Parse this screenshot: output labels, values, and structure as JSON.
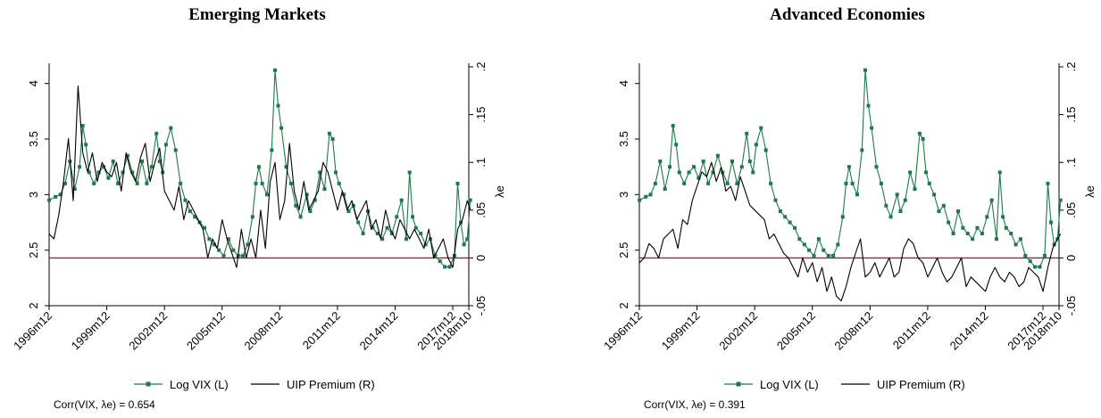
{
  "colors": {
    "vix": "#1e7a4e",
    "uip": "#000000",
    "zero_line": "#b0143c",
    "axis": "#000000"
  },
  "legend": {
    "vix_label": "Log VIX (L)",
    "uip_label": "UIP Premium (R)"
  },
  "chart_data": [
    {
      "type": "line",
      "title": "Emerging Markets",
      "xlabel": "",
      "ylabel_left": "",
      "ylabel_right": "λe",
      "x_tick_labels": [
        "1996m12",
        "1999m12",
        "2002m12",
        "2005m12",
        "2008m12",
        "2011m12",
        "2014m12",
        "2017m12",
        "2018m10"
      ],
      "y_left_ticks": [
        "2",
        "2.5",
        "3",
        "3.5",
        "4"
      ],
      "y_right_ticks": [
        "-.05",
        "0",
        ".05",
        ".1",
        ".15",
        ".2"
      ],
      "ylim_left": [
        2,
        4.15
      ],
      "ylim_right": [
        -0.05,
        0.2
      ],
      "reference_line_right": 0,
      "grid": false,
      "correlation_note": "Corr(VIX, λe) = 0.654",
      "series": [
        {
          "name": "Log VIX (L)",
          "axis": "left",
          "marker": "square",
          "x": [
            1996.92,
            1997.25,
            1997.5,
            1997.75,
            1998.0,
            1998.25,
            1998.5,
            1998.67,
            1998.83,
            1999.0,
            1999.25,
            1999.5,
            1999.75,
            2000.0,
            2000.25,
            2000.5,
            2000.75,
            2001.0,
            2001.25,
            2001.5,
            2001.75,
            2002.0,
            2002.25,
            2002.5,
            2002.67,
            2002.83,
            2003.0,
            2003.25,
            2003.5,
            2003.75,
            2004.0,
            2004.25,
            2004.5,
            2004.75,
            2005.0,
            2005.25,
            2005.5,
            2005.75,
            2006.0,
            2006.25,
            2006.5,
            2006.75,
            2007.0,
            2007.25,
            2007.5,
            2007.67,
            2007.83,
            2008.0,
            2008.25,
            2008.5,
            2008.67,
            2008.83,
            2009.0,
            2009.25,
            2009.5,
            2009.75,
            2010.0,
            2010.33,
            2010.5,
            2010.75,
            2011.0,
            2011.25,
            2011.5,
            2011.67,
            2011.83,
            2012.0,
            2012.25,
            2012.5,
            2012.75,
            2013.0,
            2013.25,
            2013.5,
            2013.75,
            2014.0,
            2014.25,
            2014.5,
            2014.75,
            2015.0,
            2015.25,
            2015.5,
            2015.67,
            2015.83,
            2016.0,
            2016.25,
            2016.5,
            2016.75,
            2017.0,
            2017.25,
            2017.5,
            2017.75,
            2018.0,
            2018.17,
            2018.33,
            2018.5,
            2018.67,
            2018.83
          ],
          "values": [
            2.95,
            2.98,
            3.0,
            3.1,
            3.3,
            3.05,
            3.25,
            3.62,
            3.45,
            3.2,
            3.1,
            3.2,
            3.25,
            3.15,
            3.3,
            3.1,
            3.2,
            3.35,
            3.2,
            3.1,
            3.3,
            3.1,
            3.25,
            3.55,
            3.3,
            3.2,
            3.45,
            3.6,
            3.4,
            3.1,
            2.95,
            2.85,
            2.8,
            2.75,
            2.7,
            2.6,
            2.55,
            2.5,
            2.45,
            2.6,
            2.5,
            2.45,
            2.45,
            2.55,
            2.8,
            3.1,
            3.25,
            3.1,
            3.0,
            3.4,
            4.12,
            3.8,
            3.6,
            3.25,
            3.1,
            2.9,
            2.8,
            3.0,
            2.85,
            2.95,
            3.2,
            3.05,
            3.55,
            3.5,
            3.2,
            3.1,
            3.0,
            2.85,
            2.9,
            2.75,
            2.65,
            2.85,
            2.7,
            2.65,
            2.6,
            2.7,
            2.65,
            2.8,
            2.95,
            2.6,
            3.2,
            2.8,
            2.7,
            2.65,
            2.55,
            2.6,
            2.45,
            2.4,
            2.35,
            2.35,
            2.45,
            3.1,
            2.75,
            2.55,
            2.6,
            2.95
          ]
        },
        {
          "name": "UIP Premium (R)",
          "axis": "right",
          "marker": "none",
          "x": [
            1996.92,
            1997.17,
            1997.42,
            1997.67,
            1997.92,
            1998.17,
            1998.42,
            1998.67,
            1998.92,
            1999.17,
            1999.42,
            1999.67,
            1999.92,
            2000.17,
            2000.42,
            2000.67,
            2000.92,
            2001.17,
            2001.42,
            2001.67,
            2001.92,
            2002.17,
            2002.42,
            2002.67,
            2002.92,
            2003.17,
            2003.42,
            2003.67,
            2003.92,
            2004.17,
            2004.42,
            2004.67,
            2004.92,
            2005.17,
            2005.42,
            2005.67,
            2005.92,
            2006.17,
            2006.42,
            2006.67,
            2006.92,
            2007.17,
            2007.42,
            2007.67,
            2007.92,
            2008.17,
            2008.42,
            2008.67,
            2008.92,
            2009.17,
            2009.42,
            2009.67,
            2009.92,
            2010.17,
            2010.42,
            2010.67,
            2010.92,
            2011.17,
            2011.42,
            2011.67,
            2011.92,
            2012.17,
            2012.42,
            2012.67,
            2012.92,
            2013.17,
            2013.42,
            2013.67,
            2013.92,
            2014.17,
            2014.42,
            2014.67,
            2014.92,
            2015.17,
            2015.42,
            2015.67,
            2015.92,
            2016.17,
            2016.42,
            2016.67,
            2016.92,
            2017.17,
            2017.42,
            2017.67,
            2017.92,
            2018.17,
            2018.42,
            2018.67,
            2018.83
          ],
          "values": [
            0.025,
            0.02,
            0.045,
            0.08,
            0.125,
            0.06,
            0.18,
            0.11,
            0.09,
            0.11,
            0.08,
            0.1,
            0.09,
            0.085,
            0.1,
            0.07,
            0.11,
            0.09,
            0.08,
            0.105,
            0.12,
            0.08,
            0.1,
            0.115,
            0.07,
            0.06,
            0.05,
            0.075,
            0.04,
            0.06,
            0.05,
            0.04,
            0.03,
            0.0,
            0.02,
            0.01,
            0.04,
            0.02,
            0.005,
            -0.01,
            0.03,
            0.0,
            0.02,
            0.0,
            0.05,
            0.01,
            0.08,
            0.1,
            0.04,
            0.06,
            0.12,
            0.07,
            0.05,
            0.08,
            0.05,
            0.06,
            0.07,
            0.1,
            0.09,
            0.07,
            0.05,
            0.07,
            0.05,
            0.06,
            0.04,
            0.05,
            0.06,
            0.03,
            0.04,
            0.02,
            0.05,
            0.03,
            0.02,
            0.04,
            0.03,
            0.02,
            0.03,
            0.02,
            0.01,
            0.03,
            0.0,
            0.01,
            0.02,
            0.0,
            -0.01,
            0.03,
            0.04,
            0.06,
            0.05
          ]
        }
      ]
    },
    {
      "type": "line",
      "title": "Advanced Economies",
      "xlabel": "",
      "ylabel_left": "",
      "ylabel_right": "λe",
      "x_tick_labels": [
        "1996m12",
        "1999m12",
        "2002m12",
        "2005m12",
        "2008m12",
        "2011m12",
        "2014m12",
        "2017m12",
        "2018m10"
      ],
      "y_left_ticks": [
        "2",
        "2.5",
        "3",
        "3.5",
        "4"
      ],
      "y_right_ticks": [
        "-.05",
        "0",
        ".05",
        ".1",
        ".15",
        ".2"
      ],
      "ylim_left": [
        2,
        4.15
      ],
      "ylim_right": [
        -0.05,
        0.2
      ],
      "reference_line_right": 0,
      "grid": false,
      "correlation_note": "Corr(VIX, λe) = 0.391",
      "series": [
        {
          "name": "Log VIX (L)",
          "axis": "left",
          "marker": "square",
          "x": [
            1996.92,
            1997.25,
            1997.5,
            1997.75,
            1998.0,
            1998.25,
            1998.5,
            1998.67,
            1998.83,
            1999.0,
            1999.25,
            1999.5,
            1999.75,
            2000.0,
            2000.25,
            2000.5,
            2000.75,
            2001.0,
            2001.25,
            2001.5,
            2001.75,
            2002.0,
            2002.25,
            2002.5,
            2002.67,
            2002.83,
            2003.0,
            2003.25,
            2003.5,
            2003.75,
            2004.0,
            2004.25,
            2004.5,
            2004.75,
            2005.0,
            2005.25,
            2005.5,
            2005.75,
            2006.0,
            2006.25,
            2006.5,
            2006.75,
            2007.0,
            2007.25,
            2007.5,
            2007.67,
            2007.83,
            2008.0,
            2008.25,
            2008.5,
            2008.67,
            2008.83,
            2009.0,
            2009.25,
            2009.5,
            2009.75,
            2010.0,
            2010.33,
            2010.5,
            2010.75,
            2011.0,
            2011.25,
            2011.5,
            2011.67,
            2011.83,
            2012.0,
            2012.25,
            2012.5,
            2012.75,
            2013.0,
            2013.25,
            2013.5,
            2013.75,
            2014.0,
            2014.25,
            2014.5,
            2014.75,
            2015.0,
            2015.25,
            2015.5,
            2015.67,
            2015.83,
            2016.0,
            2016.25,
            2016.5,
            2016.75,
            2017.0,
            2017.25,
            2017.5,
            2017.75,
            2018.0,
            2018.17,
            2018.33,
            2018.5,
            2018.67,
            2018.83
          ],
          "values": [
            2.95,
            2.98,
            3.0,
            3.1,
            3.3,
            3.05,
            3.25,
            3.62,
            3.45,
            3.2,
            3.1,
            3.2,
            3.25,
            3.15,
            3.3,
            3.1,
            3.2,
            3.35,
            3.2,
            3.1,
            3.3,
            3.1,
            3.25,
            3.55,
            3.3,
            3.2,
            3.45,
            3.6,
            3.4,
            3.1,
            2.95,
            2.85,
            2.8,
            2.75,
            2.7,
            2.6,
            2.55,
            2.5,
            2.45,
            2.6,
            2.5,
            2.45,
            2.45,
            2.55,
            2.8,
            3.1,
            3.25,
            3.1,
            3.0,
            3.4,
            4.12,
            3.8,
            3.6,
            3.25,
            3.1,
            2.9,
            2.8,
            3.0,
            2.85,
            2.95,
            3.2,
            3.05,
            3.55,
            3.5,
            3.2,
            3.1,
            3.0,
            2.85,
            2.9,
            2.75,
            2.65,
            2.85,
            2.7,
            2.65,
            2.6,
            2.7,
            2.65,
            2.8,
            2.95,
            2.6,
            3.2,
            2.8,
            2.7,
            2.65,
            2.55,
            2.6,
            2.45,
            2.4,
            2.35,
            2.35,
            2.45,
            3.1,
            2.75,
            2.55,
            2.6,
            2.95
          ]
        },
        {
          "name": "UIP Premium (R)",
          "axis": "right",
          "marker": "none",
          "x": [
            1996.92,
            1997.17,
            1997.42,
            1997.67,
            1997.92,
            1998.17,
            1998.42,
            1998.67,
            1998.92,
            1999.17,
            1999.42,
            1999.67,
            1999.92,
            2000.17,
            2000.42,
            2000.67,
            2000.92,
            2001.17,
            2001.42,
            2001.67,
            2001.92,
            2002.17,
            2002.42,
            2002.67,
            2002.92,
            2003.17,
            2003.42,
            2003.67,
            2003.92,
            2004.17,
            2004.42,
            2004.67,
            2004.92,
            2005.17,
            2005.42,
            2005.67,
            2005.92,
            2006.17,
            2006.42,
            2006.67,
            2006.92,
            2007.17,
            2007.42,
            2007.67,
            2007.92,
            2008.17,
            2008.42,
            2008.67,
            2008.92,
            2009.17,
            2009.42,
            2009.67,
            2009.92,
            2010.17,
            2010.42,
            2010.67,
            2010.92,
            2011.17,
            2011.42,
            2011.67,
            2011.92,
            2012.17,
            2012.42,
            2012.67,
            2012.92,
            2013.17,
            2013.42,
            2013.67,
            2013.92,
            2014.17,
            2014.42,
            2014.67,
            2014.92,
            2015.17,
            2015.42,
            2015.67,
            2015.92,
            2016.17,
            2016.42,
            2016.67,
            2016.92,
            2017.17,
            2017.42,
            2017.67,
            2017.92,
            2018.17,
            2018.42,
            2018.67,
            2018.83
          ],
          "values": [
            -0.005,
            0.0,
            0.015,
            0.01,
            0.0,
            0.02,
            0.025,
            0.03,
            0.01,
            0.04,
            0.035,
            0.06,
            0.075,
            0.09,
            0.085,
            0.1,
            0.08,
            0.095,
            0.07,
            0.075,
            0.06,
            0.085,
            0.07,
            0.055,
            0.05,
            0.045,
            0.04,
            0.02,
            0.025,
            0.015,
            0.005,
            0.0,
            -0.01,
            -0.02,
            0.0,
            -0.015,
            -0.005,
            -0.025,
            -0.01,
            -0.035,
            -0.02,
            -0.04,
            -0.045,
            -0.03,
            -0.01,
            0.005,
            0.02,
            -0.02,
            -0.015,
            -0.005,
            -0.02,
            -0.01,
            0.0,
            -0.02,
            -0.015,
            0.01,
            0.02,
            0.015,
            0.0,
            -0.005,
            -0.02,
            -0.01,
            0.0,
            -0.015,
            -0.025,
            -0.02,
            -0.01,
            0.0,
            -0.03,
            -0.02,
            -0.025,
            -0.03,
            -0.035,
            -0.02,
            -0.01,
            -0.02,
            -0.025,
            -0.015,
            -0.02,
            -0.03,
            -0.025,
            -0.01,
            -0.015,
            -0.02,
            -0.035,
            -0.01,
            0.01,
            0.02,
            0.025
          ]
        }
      ]
    }
  ]
}
